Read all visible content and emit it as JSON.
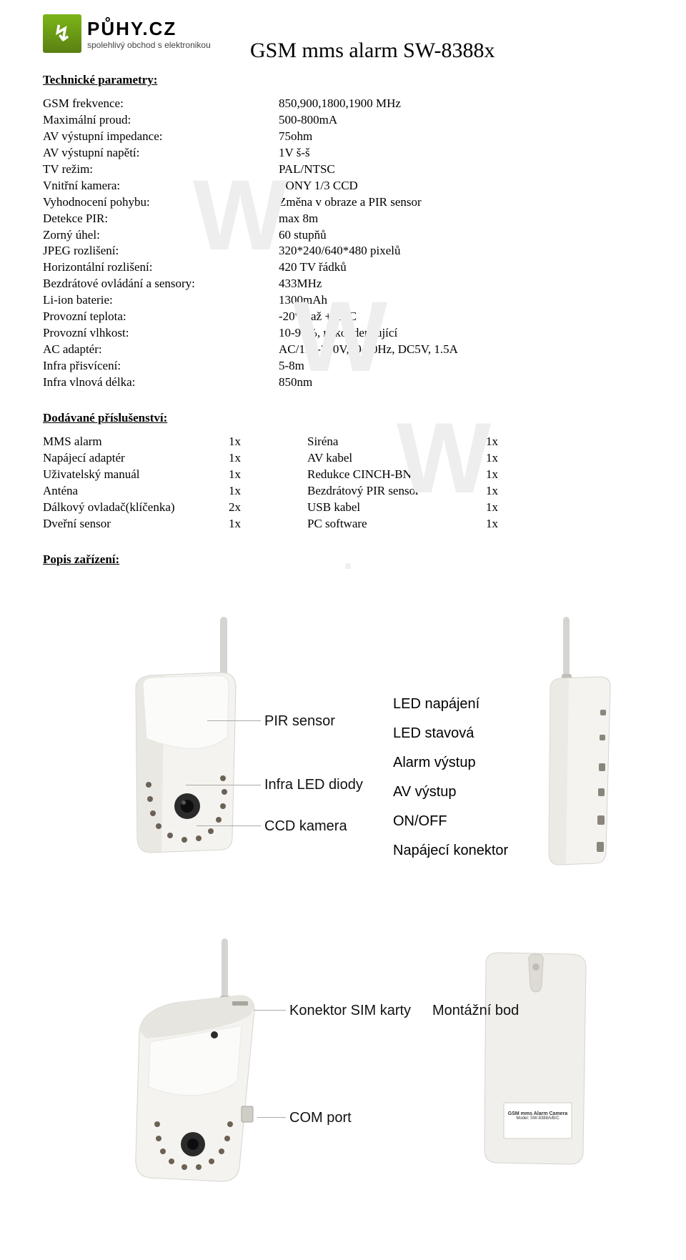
{
  "logo": {
    "brand": "PŮHY.CZ",
    "tagline": "spolehlivý obchod s elektronikou",
    "glyph": "↯"
  },
  "title": "GSM mms alarm SW-8388x",
  "section_titles": {
    "spec": "Technické parametry:",
    "accessories": "Dodávané příslušenství:",
    "desc": "Popis zařízení:"
  },
  "specs": [
    {
      "label": "GSM frekvence:",
      "value": "850,900,1800,1900 MHz"
    },
    {
      "label": "Maximální proud:",
      "value": "500-800mA"
    },
    {
      "label": "AV výstupní impedance:",
      "value": "75ohm"
    },
    {
      "label": "AV výstupní napětí:",
      "value": "1V š-š"
    },
    {
      "label": "TV režim:",
      "value": "PAL/NTSC"
    },
    {
      "label": "Vnitřní kamera:",
      "value": "SONY 1/3 CCD"
    },
    {
      "label": "Vyhodnocení pohybu:",
      "value": "Změna v obraze a PIR sensor"
    },
    {
      "label": "Detekce PIR:",
      "value": "max 8m"
    },
    {
      "label": "Zorný úhel:",
      "value": "60 stupňů"
    },
    {
      "label": "JPEG rozlišení:",
      "value": "320*240/640*480 pixelů"
    },
    {
      "label": "Horizontální rozlišení:",
      "value": "420 TV řádků"
    },
    {
      "label": "Bezdrátové ovládání a sensory:",
      "value": "433MHz"
    },
    {
      "label": "Li-ion baterie:",
      "value": "1300mAh"
    },
    {
      "label": "Provozní teplota:",
      "value": "-20°C až +55°C"
    },
    {
      "label": "Provozní vlhkost:",
      "value": "10-90%, nekondenzující"
    },
    {
      "label": "AC adaptér:",
      "value": "AC/110-240V,50-60Hz, DC5V, 1.5A"
    },
    {
      "label": "Infra přisvícení:",
      "value": "5-8m"
    },
    {
      "label": "Infra vlnová délka:",
      "value": "850nm"
    }
  ],
  "accessories_left": [
    {
      "label": "MMS alarm",
      "qty": "1x"
    },
    {
      "label": "Napájecí adaptér",
      "qty": "1x"
    },
    {
      "label": "Uživatelský manuál",
      "qty": "1x"
    },
    {
      "label": "Anténa",
      "qty": "1x"
    },
    {
      "label": "Dálkový ovladač(klíčenka)",
      "qty": "2x"
    },
    {
      "label": "Dveřní sensor",
      "qty": "1x"
    }
  ],
  "accessories_right": [
    {
      "label": "Siréna",
      "qty": "1x"
    },
    {
      "label": "AV kabel",
      "qty": "1x"
    },
    {
      "label": "Redukce CINCH-BNC",
      "qty": "1x"
    },
    {
      "label": "Bezdrátový PIR sensor",
      "qty": "1x"
    },
    {
      "label": "USB kabel",
      "qty": "1x"
    },
    {
      "label": "PC software",
      "qty": "1x"
    }
  ],
  "figure_labels": {
    "front_left": [
      "PIR sensor",
      "Infra LED diody",
      "CCD kamera"
    ],
    "side_right": [
      "LED napájení",
      "LED stavová",
      "Alarm výstup",
      "AV výstup",
      "ON/OFF",
      "Napájecí konektor"
    ],
    "top": "Konektor SIM karty",
    "com": "COM port",
    "back": "Montážní bod",
    "back_sticker_line1": "GSM mms Alarm Camera",
    "back_sticker_line2": "Model: SW-8388A/B/C"
  },
  "colors": {
    "body": "#f4f3ef",
    "body_dark": "#e3e1db",
    "pir": "#fbfbf9",
    "lens": "#2b2b2b",
    "ir": "#6b6155",
    "antenna": "#d5d4d0"
  }
}
